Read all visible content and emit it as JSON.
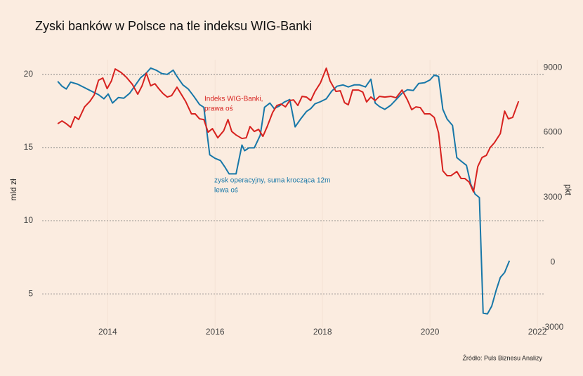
{
  "chart_data": {
    "type": "line",
    "title": "Zyski banków w Polsce na tle indeksu WIG-Banki",
    "ylabel": "mld zł",
    "y2label": "pkt",
    "source": "Źródło: Puls Biznesu Analizy",
    "xlim": [
      2012.78,
      2022.13
    ],
    "xticks": [
      2014,
      2016,
      2018,
      2020,
      2022
    ],
    "ylim": [
      2.7,
      21
    ],
    "yticks": [
      5,
      10,
      15,
      20
    ],
    "y2lim": [
      -3000,
      9360
    ],
    "y2ticks": [
      -3000,
      0,
      3000,
      6000,
      9000
    ],
    "grid": true,
    "series": [
      {
        "name": "zysk operacyjny, suma krocząca 12m",
        "name_lines": [
          "zysk operacyjny, suma krocząca 12m",
          "lewa oś"
        ],
        "color": "#1777a8",
        "axis": "y",
        "x": [
          2013.07,
          2013.15,
          2013.23,
          2013.31,
          2013.44,
          2013.57,
          2013.7,
          2013.83,
          2013.93,
          2014.01,
          2014.09,
          2014.2,
          2014.3,
          2014.41,
          2014.51,
          2014.61,
          2014.72,
          2014.8,
          2014.9,
          2015.01,
          2015.11,
          2015.22,
          2015.29,
          2015.4,
          2015.5,
          2015.61,
          2015.71,
          2015.79,
          2015.9,
          2016.0,
          2016.1,
          2016.18,
          2016.26,
          2016.39,
          2016.5,
          2016.55,
          2016.63,
          2016.73,
          2016.84,
          2016.92,
          2017.02,
          2017.1,
          2017.2,
          2017.28,
          2017.39,
          2017.49,
          2017.59,
          2017.7,
          2017.78,
          2017.86,
          2017.96,
          2018.07,
          2018.17,
          2018.27,
          2018.38,
          2018.48,
          2018.59,
          2018.69,
          2018.8,
          2018.9,
          2018.98,
          2019.06,
          2019.16,
          2019.27,
          2019.37,
          2019.48,
          2019.58,
          2019.69,
          2019.79,
          2019.9,
          2020.0,
          2020.08,
          2020.16,
          2020.24,
          2020.32,
          2020.42,
          2020.5,
          2020.58,
          2020.68,
          2020.76,
          2020.84,
          2020.92,
          2020.99,
          2021.07,
          2021.15,
          2021.23,
          2021.31,
          2021.39,
          2021.48
        ],
        "values": [
          19.52,
          19.19,
          19.0,
          19.47,
          19.33,
          19.09,
          18.85,
          18.61,
          18.33,
          18.66,
          18.04,
          18.42,
          18.37,
          18.71,
          19.23,
          19.76,
          20.1,
          20.43,
          20.29,
          20.05,
          20.0,
          20.29,
          19.86,
          19.28,
          19.0,
          18.47,
          17.94,
          17.75,
          14.5,
          14.26,
          14.11,
          13.68,
          13.2,
          13.2,
          15.17,
          14.78,
          14.98,
          14.98,
          15.84,
          17.75,
          18.04,
          17.66,
          17.85,
          18.09,
          18.28,
          16.41,
          16.94,
          17.46,
          17.66,
          17.99,
          18.13,
          18.33,
          18.85,
          19.19,
          19.28,
          19.14,
          19.28,
          19.28,
          19.14,
          19.67,
          18.04,
          17.8,
          17.61,
          17.89,
          18.28,
          18.71,
          18.95,
          18.9,
          19.38,
          19.43,
          19.62,
          19.95,
          19.86,
          17.61,
          16.94,
          16.51,
          14.31,
          14.07,
          13.78,
          12.49,
          11.82,
          11.58,
          3.68,
          3.63,
          4.16,
          5.21,
          6.12,
          6.46,
          7.27
        ]
      },
      {
        "name": "Indeks WIG-Banki",
        "name_lines": [
          "Indeks WIG-Banki,",
          "prawa oś"
        ],
        "color": "#d7221f",
        "axis": "y2",
        "x": [
          2013.07,
          2013.15,
          2013.23,
          2013.31,
          2013.39,
          2013.46,
          2013.57,
          2013.67,
          2013.75,
          2013.83,
          2013.91,
          2013.99,
          2014.07,
          2014.14,
          2014.25,
          2014.35,
          2014.46,
          2014.56,
          2014.64,
          2014.72,
          2014.8,
          2014.88,
          2014.95,
          2015.03,
          2015.11,
          2015.19,
          2015.29,
          2015.37,
          2015.45,
          2015.56,
          2015.63,
          2015.71,
          2015.79,
          2015.87,
          2015.95,
          2016.05,
          2016.16,
          2016.24,
          2016.31,
          2016.39,
          2016.5,
          2016.58,
          2016.65,
          2016.73,
          2016.81,
          2016.89,
          2016.97,
          2017.07,
          2017.15,
          2017.23,
          2017.31,
          2017.39,
          2017.46,
          2017.54,
          2017.62,
          2017.7,
          2017.78,
          2017.86,
          2017.96,
          2018.07,
          2018.14,
          2018.25,
          2018.33,
          2018.41,
          2018.48,
          2018.56,
          2018.67,
          2018.75,
          2018.82,
          2018.9,
          2018.98,
          2019.06,
          2019.16,
          2019.27,
          2019.37,
          2019.48,
          2019.58,
          2019.66,
          2019.74,
          2019.82,
          2019.9,
          2020.0,
          2020.08,
          2020.16,
          2020.24,
          2020.32,
          2020.39,
          2020.5,
          2020.58,
          2020.65,
          2020.73,
          2020.81,
          2020.89,
          2020.97,
          2021.05,
          2021.12,
          2021.2,
          2021.31,
          2021.39,
          2021.46,
          2021.54,
          2021.65
        ],
        "values": [
          6406,
          6535,
          6406,
          6243,
          6730,
          6600,
          7184,
          7443,
          7735,
          8416,
          8514,
          8027,
          8384,
          8935,
          8773,
          8546,
          8222,
          7768,
          8157,
          8741,
          8157,
          8254,
          8027,
          7800,
          7638,
          7703,
          8092,
          7768,
          7443,
          6860,
          6860,
          6633,
          6600,
          6016,
          6179,
          5757,
          6081,
          6600,
          6049,
          5887,
          5725,
          5757,
          6276,
          6049,
          6146,
          5822,
          6276,
          6924,
          7249,
          7314,
          7184,
          7476,
          7508,
          7249,
          7670,
          7638,
          7476,
          7897,
          8287,
          8968,
          8384,
          7897,
          7930,
          7378,
          7281,
          7962,
          7962,
          7865,
          7411,
          7638,
          7476,
          7670,
          7638,
          7670,
          7606,
          7962,
          7508,
          7054,
          7184,
          7151,
          6860,
          6860,
          6697,
          5984,
          4233,
          4006,
          4006,
          4200,
          3876,
          3876,
          3714,
          3260,
          4427,
          4849,
          4946,
          5303,
          5530,
          5952,
          6989,
          6633,
          6697,
          7443
        ]
      }
    ]
  }
}
